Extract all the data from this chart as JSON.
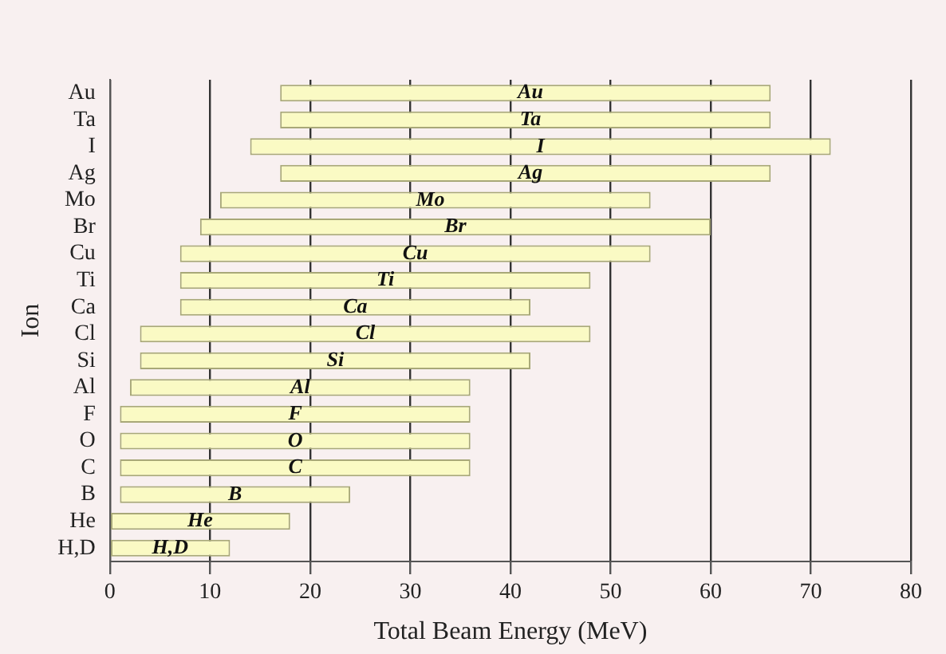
{
  "chart_data": {
    "type": "bar",
    "orientation": "horizontal",
    "xlabel": "Total Beam Energy (MeV)",
    "ylabel": "Ion",
    "categories": [
      "Au",
      "Ta",
      "I",
      "Ag",
      "Mo",
      "Br",
      "Cu",
      "Ti",
      "Ca",
      "Cl",
      "Si",
      "Al",
      "F",
      "O",
      "C",
      "B",
      "He",
      "H,D"
    ],
    "base": [
      17,
      17,
      14,
      17,
      11,
      9,
      7,
      7,
      7,
      3,
      3,
      2,
      1,
      1,
      1,
      1,
      0,
      0
    ],
    "values": [
      49,
      49,
      58,
      49,
      43,
      51,
      47,
      41,
      35,
      45,
      39,
      34,
      35,
      35,
      35,
      23,
      18,
      12
    ],
    "color": "#fafac4",
    "xlim": [
      0,
      80
    ],
    "xticks": [
      0,
      10,
      20,
      30,
      40,
      50,
      60,
      70,
      80
    ],
    "grid": "x",
    "legend": false,
    "annotations": [
      {
        "text": "Au",
        "x": 42,
        "y": "Au"
      },
      {
        "text": "Ta",
        "x": 42,
        "y": "Ta"
      },
      {
        "text": "I",
        "x": 43,
        "y": "I"
      },
      {
        "text": "Ag",
        "x": 42,
        "y": "Ag"
      },
      {
        "text": "Mo",
        "x": 32,
        "y": "Mo"
      },
      {
        "text": "Br",
        "x": 34.5,
        "y": "Br"
      },
      {
        "text": "Cu",
        "x": 30.5,
        "y": "Cu"
      },
      {
        "text": "Ti",
        "x": 27.5,
        "y": "Ti"
      },
      {
        "text": "Ca",
        "x": 24.5,
        "y": "Ca"
      },
      {
        "text": "Cl",
        "x": 25.5,
        "y": "Cl"
      },
      {
        "text": "Si",
        "x": 22.5,
        "y": "Si"
      },
      {
        "text": "Al",
        "x": 19,
        "y": "Al"
      },
      {
        "text": "F",
        "x": 18.5,
        "y": "F"
      },
      {
        "text": "O",
        "x": 18.5,
        "y": "O"
      },
      {
        "text": "C",
        "x": 18.5,
        "y": "C"
      },
      {
        "text": "B",
        "x": 12.5,
        "y": "B"
      },
      {
        "text": "He",
        "x": 9,
        "y": "He"
      },
      {
        "text": "H,D",
        "x": 6,
        "y": "H,D"
      }
    ]
  }
}
